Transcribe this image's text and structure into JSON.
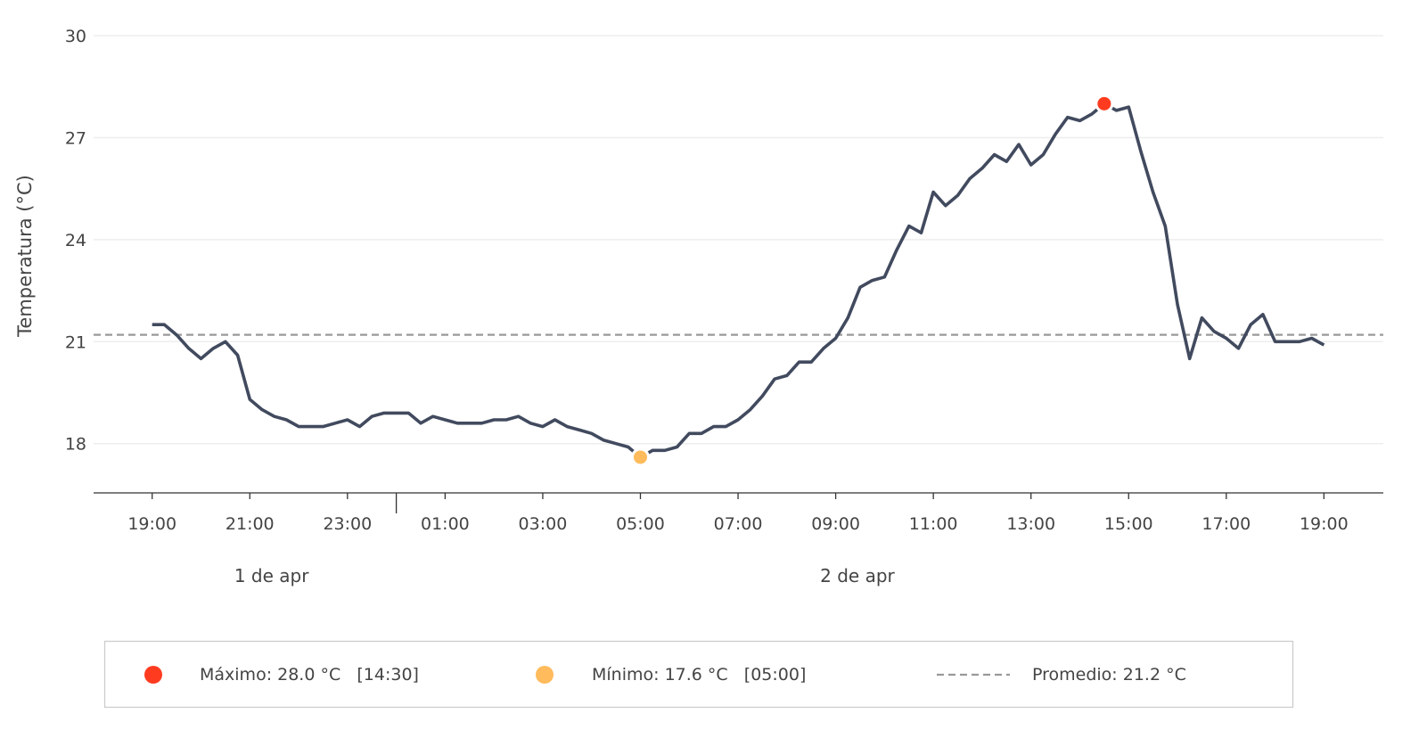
{
  "chart_data": {
    "type": "line",
    "title": "",
    "xlabel": "",
    "ylabel": "Temperatura (°C)",
    "ylim": [
      16.55,
      31.05
    ],
    "xlim": [
      "1 apr 17:48",
      "2 apr 20:13"
    ],
    "grid": "horizontal",
    "yticks": [
      "18",
      "21",
      "24",
      "27",
      "30"
    ],
    "xticks": [
      {
        "at": "1 apr 19:00",
        "label": "19:00"
      },
      {
        "at": "1 apr 21:00",
        "label": "21:00"
      },
      {
        "at": "1 apr 23:00",
        "label": "23:00"
      },
      {
        "at": "2 apr 01:00",
        "label": "01:00"
      },
      {
        "at": "2 apr 03:00",
        "label": "03:00"
      },
      {
        "at": "2 apr 05:00",
        "label": "05:00"
      },
      {
        "at": "2 apr 07:00",
        "label": "07:00"
      },
      {
        "at": "2 apr 09:00",
        "label": "09:00"
      },
      {
        "at": "2 apr 11:00",
        "label": "11:00"
      },
      {
        "at": "2 apr 13:00",
        "label": "13:00"
      },
      {
        "at": "2 apr 15:00",
        "label": "15:00"
      },
      {
        "at": "2 apr 17:00",
        "label": "17:00"
      },
      {
        "at": "2 apr 19:00",
        "label": "19:00"
      }
    ],
    "day_labels": [
      {
        "at": "1 apr 21:30",
        "label": "1 de apr"
      },
      {
        "at": "2 apr 09:30",
        "label": "2 de apr"
      }
    ],
    "day_separator": "2 apr 00:00",
    "x": [
      "1 apr 19:00",
      "1 apr 19:15",
      "1 apr 19:30",
      "1 apr 19:45",
      "1 apr 20:00",
      "1 apr 20:15",
      "1 apr 20:30",
      "1 apr 20:45",
      "1 apr 21:00",
      "1 apr 21:15",
      "1 apr 21:30",
      "1 apr 21:45",
      "1 apr 22:00",
      "1 apr 22:15",
      "1 apr 22:30",
      "1 apr 22:45",
      "1 apr 23:00",
      "1 apr 23:15",
      "1 apr 23:30",
      "1 apr 23:45",
      "2 apr 00:00",
      "2 apr 00:15",
      "2 apr 00:30",
      "2 apr 00:45",
      "2 apr 01:00",
      "2 apr 01:15",
      "2 apr 01:30",
      "2 apr 01:45",
      "2 apr 02:00",
      "2 apr 02:15",
      "2 apr 02:30",
      "2 apr 02:45",
      "2 apr 03:00",
      "2 apr 03:15",
      "2 apr 03:30",
      "2 apr 03:45",
      "2 apr 04:00",
      "2 apr 04:15",
      "2 apr 04:30",
      "2 apr 04:45",
      "2 apr 05:00",
      "2 apr 05:15",
      "2 apr 05:30",
      "2 apr 05:45",
      "2 apr 06:00",
      "2 apr 06:15",
      "2 apr 06:30",
      "2 apr 06:45",
      "2 apr 07:00",
      "2 apr 07:15",
      "2 apr 07:30",
      "2 apr 07:45",
      "2 apr 08:00",
      "2 apr 08:15",
      "2 apr 08:30",
      "2 apr 08:45",
      "2 apr 09:00",
      "2 apr 09:15",
      "2 apr 09:30",
      "2 apr 09:45",
      "2 apr 10:00",
      "2 apr 10:15",
      "2 apr 10:30",
      "2 apr 10:45",
      "2 apr 11:00",
      "2 apr 11:15",
      "2 apr 11:30",
      "2 apr 11:45",
      "2 apr 12:00",
      "2 apr 12:15",
      "2 apr 12:30",
      "2 apr 12:45",
      "2 apr 13:00",
      "2 apr 13:15",
      "2 apr 13:30",
      "2 apr 13:45",
      "2 apr 14:00",
      "2 apr 14:15",
      "2 apr 14:30",
      "2 apr 14:45",
      "2 apr 15:00",
      "2 apr 15:15",
      "2 apr 15:30",
      "2 apr 15:45",
      "2 apr 16:00",
      "2 apr 16:15",
      "2 apr 16:30",
      "2 apr 16:45",
      "2 apr 17:00",
      "2 apr 17:15",
      "2 apr 17:30",
      "2 apr 17:45",
      "2 apr 18:00",
      "2 apr 18:15",
      "2 apr 18:30",
      "2 apr 18:45",
      "2 apr 19:00"
    ],
    "series": [
      {
        "color": "#414a5e",
        "values": [
          21.5,
          21.5,
          21.2,
          20.8,
          20.5,
          20.8,
          21.0,
          20.6,
          19.3,
          19.0,
          18.8,
          18.7,
          18.5,
          18.5,
          18.5,
          18.6,
          18.7,
          18.5,
          18.8,
          18.9,
          18.9,
          18.9,
          18.6,
          18.8,
          18.7,
          18.6,
          18.6,
          18.6,
          18.7,
          18.7,
          18.8,
          18.6,
          18.5,
          18.7,
          18.5,
          18.4,
          18.3,
          18.1,
          18.0,
          17.9,
          17.6,
          17.8,
          17.8,
          17.9,
          18.3,
          18.3,
          18.5,
          18.5,
          18.7,
          19.0,
          19.4,
          19.9,
          20.0,
          20.4,
          20.4,
          20.8,
          21.1,
          21.7,
          22.6,
          22.8,
          22.9,
          23.7,
          24.4,
          24.2,
          25.4,
          25.0,
          25.3,
          25.8,
          26.1,
          26.5,
          26.3,
          26.8,
          26.2,
          26.5,
          27.1,
          27.6,
          27.5,
          27.7,
          28.0,
          27.8,
          27.9,
          26.6,
          25.4,
          24.4,
          22.1,
          20.5,
          21.7,
          21.3,
          21.1,
          20.8,
          21.5,
          21.8,
          21.0,
          21.0,
          21.0,
          21.1,
          20.9
        ]
      }
    ],
    "average": {
      "value": 21.2,
      "color": "#999999"
    },
    "max_point": {
      "x": "2 apr 14:30",
      "y": 28.0,
      "color": "#ff3b1f"
    },
    "min_point": {
      "x": "2 apr 05:00",
      "y": 17.6,
      "color": "#ffbb5c"
    },
    "legend": {
      "placement": "bottom",
      "items": [
        {
          "label": "Máximo: 28.0 °C   [14:30]",
          "marker": "dot",
          "color": "#ff3b1f"
        },
        {
          "label": "Mínimo: 17.6 °C   [05:00]",
          "marker": "dot",
          "color": "#ffbb5c"
        },
        {
          "label": "Promedio: 21.2 °C",
          "marker": "dashed-line",
          "color": "#999999"
        }
      ]
    }
  }
}
